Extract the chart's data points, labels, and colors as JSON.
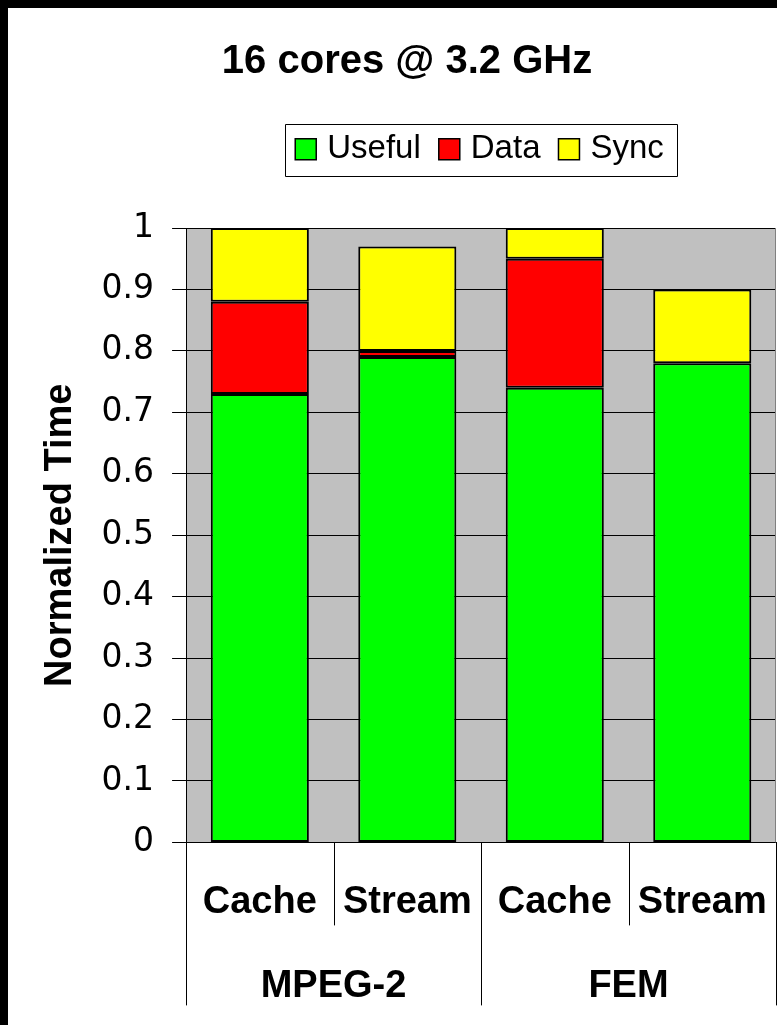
{
  "chart_data": {
    "type": "bar",
    "title": "16 cores @ 3.2 GHz",
    "ylabel": "Normalized Time",
    "categories": [
      "Cache",
      "Stream",
      "Cache",
      "Stream"
    ],
    "annotations": [
      "MPEG-2",
      "FEM"
    ],
    "series": [
      {
        "name": "Useful",
        "color": "#00ff00",
        "values": [
          0.73,
          0.79,
          0.74,
          0.78
        ]
      },
      {
        "name": "Data",
        "color": "#ff0000",
        "values": [
          0.15,
          0.01,
          0.21,
          0
        ]
      },
      {
        "name": "Sync",
        "color": "#ffff00",
        "values": [
          0.12,
          0.17,
          0.05,
          0.12
        ]
      }
    ],
    "stacked": true,
    "ylim": [
      0,
      1
    ],
    "yticks": [
      0,
      0.1,
      0.2,
      0.3,
      0.4,
      0.5,
      0.6,
      0.7,
      0.8,
      0.9,
      1
    ],
    "grid": "y",
    "legend": "top"
  }
}
